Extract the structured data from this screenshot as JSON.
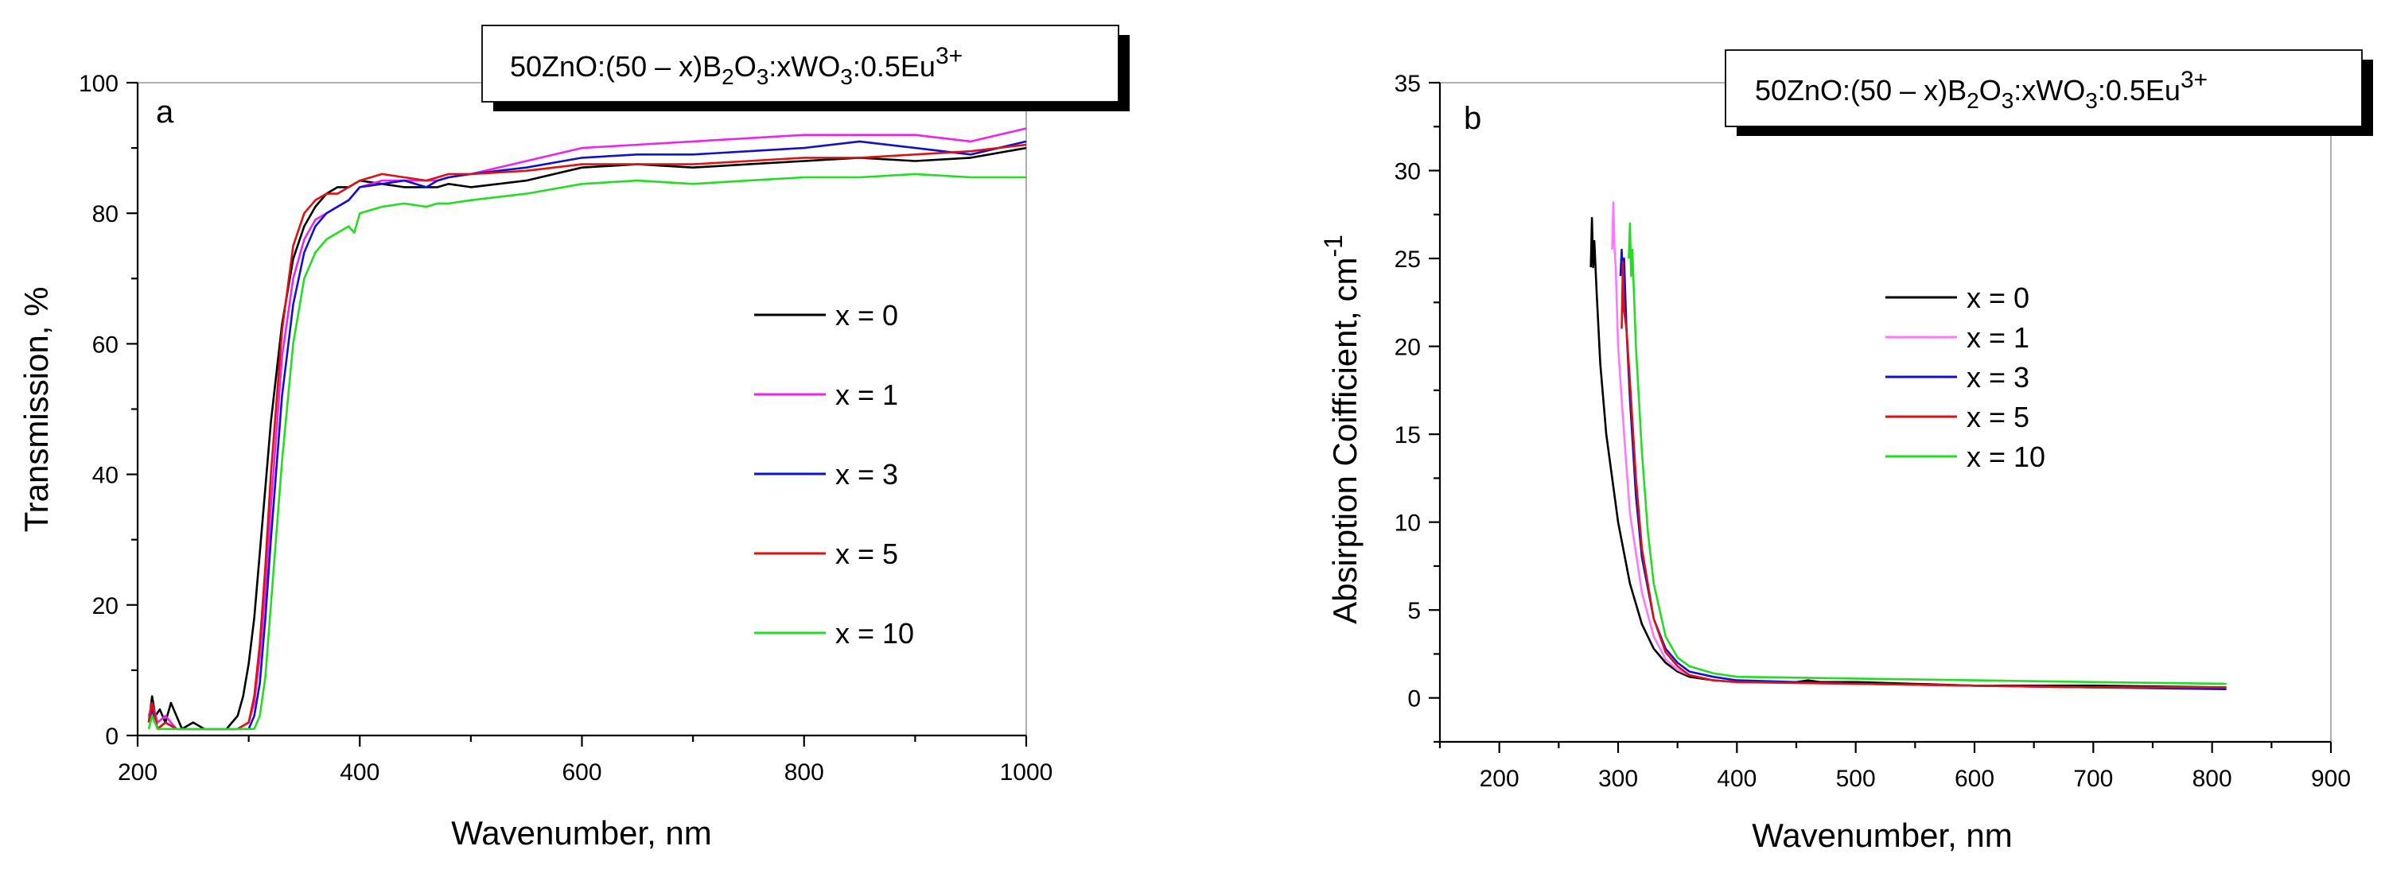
{
  "chart_data": [
    {
      "type": "line",
      "panel_label": "a",
      "title": {
        "prefix": "50ZnO:(50 – x)B",
        "sub1": "2",
        "mid1": "O",
        "sub2": "3",
        "mid2": ":xWO",
        "sub3": "3",
        "mid3": ":0.5Eu",
        "sup": "3+"
      },
      "xlabel": "Wavenumber, nm",
      "ylabel": "Transmission, %",
      "xlim": [
        200,
        1000
      ],
      "ylim": [
        0,
        100
      ],
      "xticks": [
        200,
        400,
        600,
        800,
        1000
      ],
      "yticks": [
        0,
        20,
        40,
        60,
        80,
        100
      ],
      "xtick_labels": [
        "200",
        "400",
        "600",
        "800",
        "1000"
      ],
      "ytick_labels": [
        "0",
        "20",
        "40",
        "60",
        "80",
        "100"
      ],
      "legend": "right",
      "series": [
        {
          "name": "x = 0",
          "color": "#000000",
          "x": [
            210,
            213,
            216,
            220,
            225,
            230,
            240,
            250,
            260,
            270,
            280,
            285,
            290,
            295,
            300,
            305,
            310,
            315,
            320,
            330,
            340,
            350,
            360,
            370,
            380,
            390,
            400,
            420,
            440,
            460,
            470,
            480,
            500,
            550,
            600,
            650,
            700,
            750,
            800,
            850,
            900,
            950,
            1000
          ],
          "y": [
            2,
            6,
            3,
            4,
            2,
            5,
            1,
            2,
            1,
            1,
            1,
            2,
            3,
            6,
            11,
            18,
            28,
            38,
            48,
            63,
            73,
            78,
            81,
            83,
            84,
            84,
            85,
            84.5,
            84,
            84,
            84,
            84.5,
            84,
            85,
            87,
            87.5,
            87,
            87.5,
            88,
            88.5,
            88,
            88.5,
            90
          ]
        },
        {
          "name": "x = 1",
          "color": "#ee22ee",
          "x": [
            210,
            213,
            218,
            225,
            235,
            250,
            270,
            290,
            300,
            305,
            310,
            315,
            320,
            330,
            340,
            350,
            360,
            370,
            380,
            390,
            400,
            420,
            440,
            460,
            470,
            480,
            500,
            550,
            600,
            650,
            700,
            750,
            800,
            850,
            900,
            950,
            1000
          ],
          "y": [
            3,
            5,
            2,
            3,
            1,
            1,
            1,
            1,
            2,
            5,
            12,
            22,
            35,
            58,
            70,
            76,
            79,
            80,
            81,
            82,
            84,
            85,
            85,
            85,
            85,
            85.5,
            86,
            88,
            90,
            90.5,
            91,
            91.5,
            92,
            92,
            92,
            91,
            93
          ]
        },
        {
          "name": "x = 3",
          "color": "#1111cc",
          "x": [
            210,
            213,
            218,
            225,
            235,
            250,
            270,
            290,
            300,
            305,
            310,
            315,
            320,
            330,
            340,
            350,
            360,
            370,
            380,
            390,
            400,
            420,
            440,
            460,
            470,
            480,
            500,
            550,
            600,
            650,
            700,
            750,
            800,
            850,
            900,
            950,
            1000
          ],
          "y": [
            2,
            4,
            1,
            2,
            1,
            1,
            1,
            1,
            1,
            3,
            8,
            18,
            30,
            52,
            66,
            74,
            78,
            80,
            81,
            82,
            84,
            84.5,
            85,
            84,
            85,
            85.5,
            86,
            87,
            88.5,
            89,
            89,
            89.5,
            90,
            91,
            90,
            89,
            91
          ]
        },
        {
          "name": "x = 5",
          "color": "#dd1111",
          "x": [
            210,
            213,
            218,
            225,
            235,
            250,
            270,
            290,
            300,
            305,
            310,
            315,
            320,
            330,
            340,
            350,
            360,
            370,
            380,
            390,
            400,
            420,
            440,
            460,
            470,
            480,
            500,
            550,
            600,
            650,
            700,
            750,
            800,
            850,
            900,
            950,
            1000
          ],
          "y": [
            2,
            5,
            1,
            2,
            1,
            1,
            1,
            1,
            2,
            6,
            14,
            26,
            40,
            62,
            75,
            80,
            82,
            83,
            83,
            84,
            85,
            86,
            85.5,
            85,
            85.5,
            86,
            86,
            86.5,
            87.5,
            87.5,
            87.5,
            88,
            88.5,
            88.5,
            89,
            89.5,
            90.5
          ]
        },
        {
          "name": "x = 10",
          "color": "#22dd22",
          "x": [
            210,
            213,
            218,
            225,
            235,
            250,
            270,
            290,
            300,
            305,
            310,
            315,
            320,
            330,
            340,
            350,
            360,
            370,
            380,
            390,
            395,
            400,
            420,
            440,
            460,
            470,
            480,
            500,
            550,
            600,
            650,
            700,
            750,
            800,
            850,
            900,
            950,
            1000
          ],
          "y": [
            1,
            3,
            1,
            1,
            1,
            1,
            1,
            1,
            1,
            1,
            3,
            9,
            20,
            42,
            60,
            70,
            74,
            76,
            77,
            78,
            77,
            80,
            81,
            81.5,
            81,
            81.5,
            81.5,
            82,
            83,
            84.5,
            85,
            84.5,
            85,
            85.5,
            85.5,
            86,
            85.5,
            85.5
          ]
        }
      ]
    },
    {
      "type": "line",
      "panel_label": "b",
      "title": {
        "prefix": "50ZnO:(50 – x)B",
        "sub1": "2",
        "mid1": "O",
        "sub2": "3",
        "mid2": ":xWO",
        "sub3": "3",
        "mid3": ":0.5Eu",
        "sup": "3+"
      },
      "xlabel": "Wavenumber, nm",
      "ylabel": "Absirption Coifficient, cm",
      "ylabel_sup": "-1",
      "xlim": [
        150,
        900
      ],
      "ylim": [
        -2.5,
        35
      ],
      "xticks": [
        200,
        300,
        400,
        500,
        600,
        700,
        800,
        900
      ],
      "yticks": [
        0,
        5,
        10,
        15,
        20,
        25,
        30,
        35
      ],
      "xtick_labels": [
        "200",
        "300",
        "400",
        "500",
        "600",
        "700",
        "800",
        "900"
      ],
      "ytick_labels": [
        "0",
        "5",
        "10",
        "15",
        "20",
        "25",
        "30",
        "35"
      ],
      "legend": "upper-center",
      "series": [
        {
          "name": " x = 0",
          "color": "#000000",
          "x": [
            277,
            278,
            279,
            280,
            282,
            285,
            290,
            300,
            310,
            320,
            330,
            340,
            350,
            360,
            380,
            400,
            450,
            460,
            470,
            500,
            600,
            700,
            812
          ],
          "y": [
            24.5,
            27.3,
            24.5,
            26,
            23,
            19,
            15,
            10,
            6.5,
            4.2,
            2.8,
            2.0,
            1.5,
            1.2,
            1.0,
            0.9,
            0.9,
            1.0,
            0.9,
            0.9,
            0.7,
            0.7,
            0.6
          ]
        },
        {
          "name": "x = 1",
          "color": "#ff77ff",
          "x": [
            295,
            296,
            297,
            298,
            300,
            305,
            310,
            320,
            330,
            340,
            350,
            360,
            380,
            400,
            500,
            600,
            700,
            812
          ],
          "y": [
            25.5,
            28.2,
            25.5,
            24.5,
            20,
            15,
            10.5,
            6.0,
            3.5,
            2.2,
            1.6,
            1.3,
            1.0,
            0.9,
            0.8,
            0.7,
            0.6,
            0.6
          ]
        },
        {
          "name": "x = 3",
          "color": "#1111cc",
          "x": [
            302,
            303,
            304,
            305,
            307,
            310,
            315,
            320,
            330,
            340,
            350,
            360,
            380,
            400,
            500,
            600,
            700,
            812
          ],
          "y": [
            24,
            25.5,
            24,
            25,
            21,
            17,
            11.5,
            8,
            4.5,
            2.8,
            2.0,
            1.5,
            1.2,
            1.0,
            0.8,
            0.7,
            0.6,
            0.5
          ]
        },
        {
          "name": "x = 5",
          "color": "#dd1111",
          "x": [
            303,
            304,
            305,
            307,
            310,
            315,
            320,
            330,
            340,
            350,
            360,
            380,
            400,
            500,
            600,
            700,
            812
          ],
          "y": [
            21,
            24.8,
            22,
            21,
            18,
            12.5,
            8.5,
            4.5,
            2.6,
            1.8,
            1.3,
            1.0,
            0.9,
            0.8,
            0.7,
            0.6,
            0.6
          ]
        },
        {
          "name": "x = 10",
          "color": "#22dd22",
          "x": [
            309,
            310,
            311,
            312,
            315,
            320,
            325,
            330,
            340,
            350,
            360,
            380,
            400,
            500,
            600,
            700,
            812
          ],
          "y": [
            25,
            27,
            24,
            25.5,
            20,
            14,
            9.5,
            6.5,
            3.5,
            2.3,
            1.8,
            1.4,
            1.2,
            1.1,
            1.0,
            0.9,
            0.8
          ]
        }
      ]
    }
  ]
}
